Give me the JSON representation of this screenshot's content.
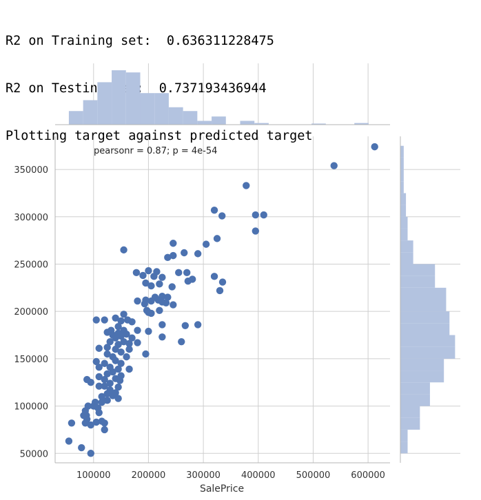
{
  "console": {
    "lines": [
      "R2 on Training set:  0.636311228475",
      "R2 on Testing set:  0.737193436944",
      "Plotting target against predicted target"
    ]
  },
  "colors": {
    "points": "#4c72b0",
    "hist": "#b3c3e0",
    "grid": "#cfcfcf",
    "axis": "#b5b5b5",
    "background": "#ffffff"
  },
  "chart_data": {
    "type": "scatter",
    "xlabel": "SalePrice",
    "ylabel": "",
    "annotation": "pearsonr = 0.87; p = 4e-54",
    "xlim": [
      30000,
      640000
    ],
    "ylim": [
      40000,
      385000
    ],
    "xticks": [
      100000,
      200000,
      300000,
      400000,
      500000,
      600000
    ],
    "yticks": [
      50000,
      100000,
      150000,
      200000,
      250000,
      300000,
      350000
    ],
    "grid": true,
    "points": [
      [
        612000,
        374000
      ],
      [
        538000,
        354000
      ],
      [
        378000,
        333000
      ],
      [
        320000,
        307000
      ],
      [
        334000,
        301000
      ],
      [
        395000,
        302000
      ],
      [
        410000,
        302000
      ],
      [
        395000,
        285000
      ],
      [
        325000,
        277000
      ],
      [
        305000,
        271000
      ],
      [
        290000,
        261000
      ],
      [
        155000,
        265000
      ],
      [
        245000,
        272000
      ],
      [
        265000,
        262000
      ],
      [
        245000,
        259000
      ],
      [
        235000,
        257000
      ],
      [
        255000,
        241000
      ],
      [
        270000,
        241000
      ],
      [
        215000,
        242000
      ],
      [
        200000,
        243000
      ],
      [
        178000,
        241000
      ],
      [
        190000,
        238000
      ],
      [
        210000,
        237000
      ],
      [
        225000,
        236000
      ],
      [
        320000,
        237000
      ],
      [
        280000,
        234000
      ],
      [
        335000,
        231000
      ],
      [
        272000,
        232000
      ],
      [
        195000,
        230000
      ],
      [
        220000,
        229000
      ],
      [
        205000,
        227000
      ],
      [
        243000,
        226000
      ],
      [
        330000,
        222000
      ],
      [
        225000,
        216000
      ],
      [
        235000,
        215000
      ],
      [
        212000,
        215000
      ],
      [
        218000,
        212000
      ],
      [
        195000,
        212000
      ],
      [
        205000,
        211000
      ],
      [
        180000,
        211000
      ],
      [
        225000,
        210000
      ],
      [
        232000,
        209000
      ],
      [
        193000,
        208000
      ],
      [
        245000,
        207000
      ],
      [
        197000,
        201000
      ],
      [
        220000,
        201000
      ],
      [
        205000,
        198000
      ],
      [
        200000,
        199000
      ],
      [
        155000,
        197000
      ],
      [
        162000,
        191000
      ],
      [
        170000,
        189000
      ],
      [
        105000,
        191000
      ],
      [
        120000,
        191000
      ],
      [
        140000,
        193000
      ],
      [
        150000,
        190000
      ],
      [
        267000,
        185000
      ],
      [
        290000,
        186000
      ],
      [
        225000,
        186000
      ],
      [
        145000,
        184000
      ],
      [
        132000,
        180000
      ],
      [
        155000,
        180000
      ],
      [
        180000,
        180000
      ],
      [
        125000,
        178000
      ],
      [
        145000,
        177000
      ],
      [
        135000,
        175000
      ],
      [
        160000,
        176000
      ],
      [
        150000,
        174000
      ],
      [
        140000,
        172000
      ],
      [
        170000,
        172000
      ],
      [
        200000,
        179000
      ],
      [
        225000,
        173000
      ],
      [
        130000,
        168000
      ],
      [
        155000,
        168000
      ],
      [
        165000,
        166000
      ],
      [
        145000,
        165000
      ],
      [
        260000,
        168000
      ],
      [
        180000,
        167000
      ],
      [
        110000,
        161000
      ],
      [
        125000,
        162000
      ],
      [
        140000,
        160000
      ],
      [
        165000,
        160000
      ],
      [
        150000,
        157000
      ],
      [
        195000,
        155000
      ],
      [
        125000,
        155000
      ],
      [
        135000,
        152000
      ],
      [
        160000,
        152000
      ],
      [
        105000,
        147000
      ],
      [
        140000,
        148000
      ],
      [
        120000,
        145000
      ],
      [
        150000,
        145000
      ],
      [
        110000,
        141000
      ],
      [
        130000,
        141000
      ],
      [
        145000,
        139000
      ],
      [
        165000,
        139000
      ],
      [
        135000,
        136000
      ],
      [
        125000,
        134000
      ],
      [
        150000,
        132000
      ],
      [
        110000,
        131000
      ],
      [
        140000,
        129000
      ],
      [
        120000,
        128000
      ],
      [
        88000,
        128000
      ],
      [
        148000,
        127000
      ],
      [
        95000,
        125000
      ],
      [
        130000,
        124000
      ],
      [
        120000,
        121000
      ],
      [
        110000,
        121000
      ],
      [
        145000,
        120000
      ],
      [
        130000,
        117000
      ],
      [
        140000,
        114000
      ],
      [
        125000,
        113000
      ],
      [
        115000,
        110000
      ],
      [
        135000,
        111000
      ],
      [
        145000,
        108000
      ],
      [
        125000,
        106000
      ],
      [
        103000,
        104000
      ],
      [
        115000,
        104000
      ],
      [
        90000,
        100000
      ],
      [
        100000,
        100000
      ],
      [
        108000,
        98000
      ],
      [
        85000,
        95000
      ],
      [
        87000,
        90000
      ],
      [
        110000,
        93000
      ],
      [
        82000,
        90000
      ],
      [
        88000,
        86000
      ],
      [
        115000,
        84000
      ],
      [
        85000,
        82000
      ],
      [
        60000,
        82000
      ],
      [
        105000,
        83000
      ],
      [
        120000,
        82000
      ],
      [
        95000,
        80000
      ],
      [
        120000,
        75000
      ],
      [
        55000,
        63000
      ],
      [
        78000,
        56000
      ],
      [
        95000,
        50000
      ]
    ],
    "marginal_x": {
      "bin_edges": [
        55000,
        81000,
        107000,
        133000,
        159000,
        185000,
        211000,
        237000,
        263000,
        289000,
        315000,
        341000,
        367000,
        393000,
        419000,
        445000,
        471000,
        497000,
        523000,
        549000,
        575000,
        601000,
        627000
      ],
      "heights": [
        0.25,
        0.45,
        0.78,
        1.0,
        0.96,
        0.58,
        0.58,
        0.32,
        0.25,
        0.07,
        0.15,
        0.0,
        0.07,
        0.03,
        0.0,
        0.0,
        0.0,
        0.02,
        0.0,
        0.0,
        0.03,
        0.0
      ]
    },
    "marginal_y": {
      "bin_edges": [
        50000,
        62500,
        75000,
        87500,
        100000,
        112500,
        125000,
        137500,
        150000,
        162500,
        175000,
        187500,
        200000,
        212500,
        225000,
        237500,
        250000,
        262500,
        275000,
        287500,
        300000,
        312500,
        325000,
        337500,
        350000,
        362500,
        375000
      ],
      "heights": [
        0.13,
        0.13,
        0.35,
        0.35,
        0.53,
        0.53,
        0.78,
        0.78,
        0.98,
        0.98,
        0.88,
        0.88,
        0.82,
        0.82,
        0.62,
        0.62,
        0.23,
        0.23,
        0.13,
        0.13,
        0.1,
        0.1,
        0.06,
        0.06,
        0.06,
        0.06
      ]
    }
  }
}
